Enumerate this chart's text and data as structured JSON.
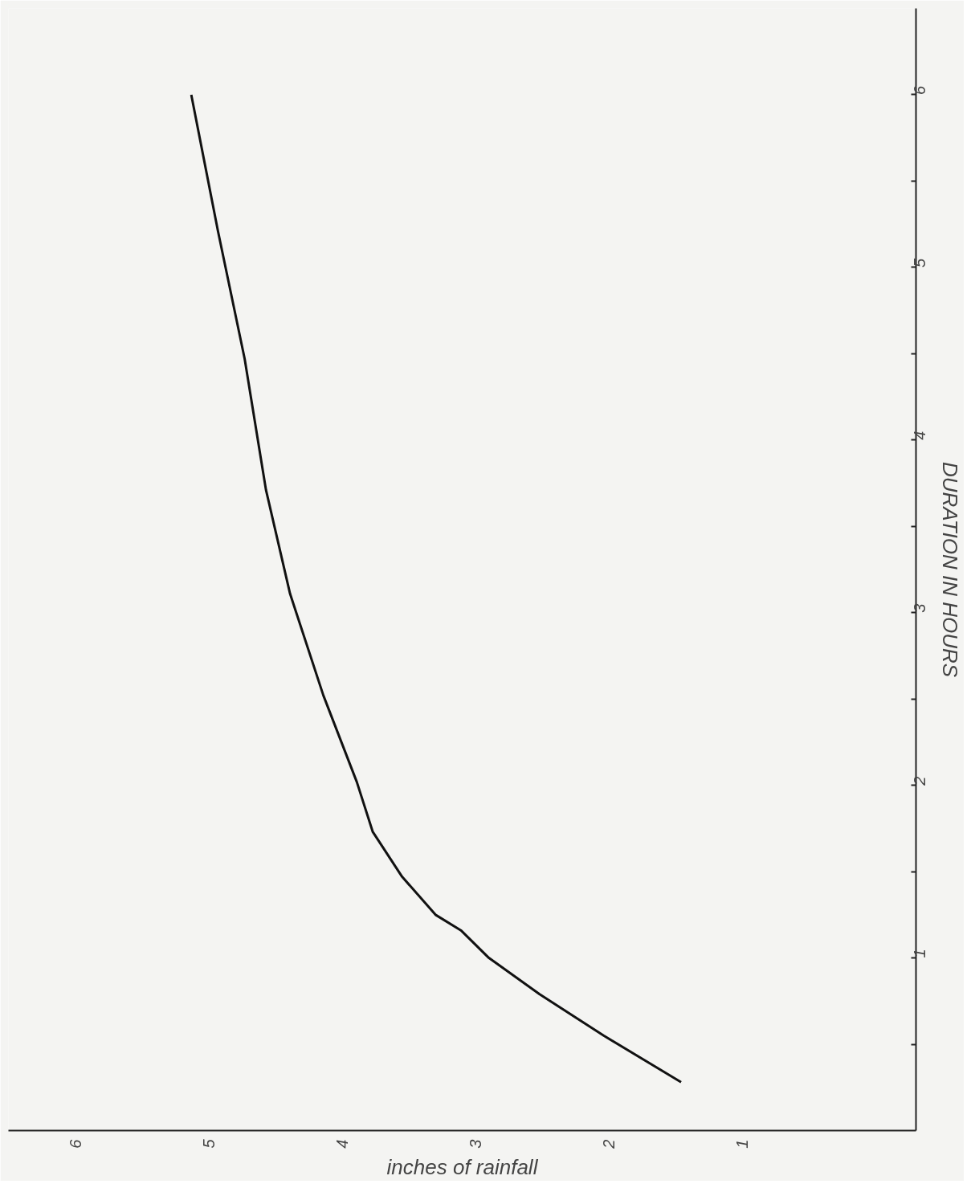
{
  "chart_data": {
    "type": "line",
    "xlabel": "inches of rainfall",
    "ylabel": "DURATION IN HOURS",
    "xlim": [
      6.5,
      -0.3
    ],
    "ylim": [
      0,
      6.5
    ],
    "xticks": [
      1,
      2,
      3,
      4,
      5,
      6
    ],
    "yticks": [
      {
        "value": 0.5,
        "label": null
      },
      1,
      {
        "value": 1.5,
        "label": null
      },
      2,
      {
        "value": 2.5,
        "label": null
      },
      3,
      {
        "value": 3.5,
        "label": null
      },
      4,
      {
        "value": 4.5,
        "label": null
      },
      5,
      {
        "value": 5.5,
        "label": null
      },
      6
    ],
    "grid": false,
    "marker": "none",
    "line_style": "solid",
    "series": [
      {
        "color": "#111111",
        "x": [
          1.46,
          2.04,
          2.52,
          2.9,
          3.11,
          3.3,
          3.55,
          3.77,
          3.89,
          4.14,
          4.39,
          4.57,
          4.73,
          4.93,
          5.13
        ],
        "values": [
          0.28,
          0.55,
          0.79,
          1.0,
          1.16,
          1.25,
          1.47,
          1.73,
          2.02,
          2.52,
          3.11,
          3.71,
          4.47,
          5.21,
          6.0
        ]
      }
    ]
  }
}
